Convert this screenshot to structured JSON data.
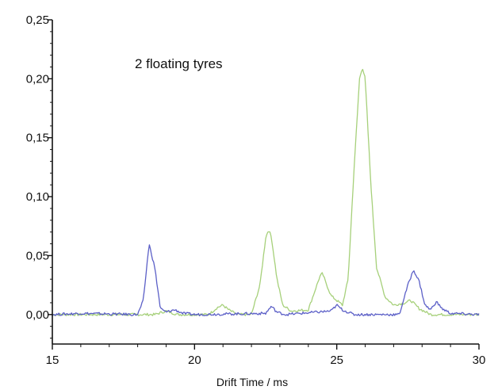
{
  "chart_data": {
    "type": "line",
    "title": "",
    "annotation": "2 floating tyres",
    "xlabel": "Drift Time / ms",
    "ylabel": "",
    "xlim": [
      15,
      30
    ],
    "ylim": [
      -0.025,
      0.25
    ],
    "xticks": [
      15,
      20,
      25,
      30
    ],
    "xtick_labels": [
      "15",
      "20",
      "25",
      "30"
    ],
    "yticks": [
      0.0,
      0.05,
      0.1,
      0.15,
      0.2,
      0.25
    ],
    "ytick_labels": [
      "0,00",
      "0,05",
      "0,10",
      "0,15",
      "0,20",
      "0,25"
    ],
    "grid": false,
    "series": [
      {
        "color": "#a6d07a",
        "x": [
          15.0,
          17.0,
          18.6,
          19.0,
          19.4,
          20.5,
          20.8,
          21.0,
          21.2,
          21.5,
          22.0,
          22.3,
          22.5,
          22.6,
          22.7,
          22.9,
          23.1,
          23.4,
          24.0,
          24.2,
          24.4,
          24.5,
          24.6,
          24.8,
          25.0,
          25.2,
          25.4,
          25.6,
          25.8,
          25.9,
          26.0,
          26.2,
          26.4,
          26.7,
          27.0,
          27.4,
          27.6,
          27.9,
          28.3,
          30.0
        ],
        "values": [
          0.0,
          0.0,
          0.0,
          0.003,
          0.0,
          0.0,
          0.006,
          0.008,
          0.004,
          0.0,
          0.0,
          0.025,
          0.065,
          0.072,
          0.066,
          0.03,
          0.008,
          0.003,
          0.004,
          0.018,
          0.032,
          0.035,
          0.028,
          0.016,
          0.012,
          0.008,
          0.03,
          0.12,
          0.2,
          0.21,
          0.2,
          0.11,
          0.04,
          0.015,
          0.008,
          0.01,
          0.012,
          0.005,
          0.0,
          0.0
        ]
      },
      {
        "color": "#5b5fc7",
        "x": [
          15.0,
          16.0,
          18.0,
          18.2,
          18.4,
          18.6,
          18.8,
          19.0,
          19.3,
          19.6,
          20.0,
          22.5,
          22.7,
          22.9,
          23.2,
          24.8,
          25.0,
          25.2,
          25.6,
          27.2,
          27.5,
          27.7,
          27.9,
          28.1,
          28.3,
          28.5,
          28.7,
          29.0,
          30.0
        ],
        "values": [
          0.0,
          0.001,
          0.0,
          0.012,
          0.06,
          0.04,
          0.005,
          0.002,
          0.004,
          0.001,
          0.0,
          0.001,
          0.007,
          0.002,
          0.0,
          0.003,
          0.008,
          0.004,
          0.0,
          0.0,
          0.025,
          0.038,
          0.028,
          0.008,
          0.004,
          0.011,
          0.005,
          0.001,
          0.0
        ]
      }
    ]
  }
}
